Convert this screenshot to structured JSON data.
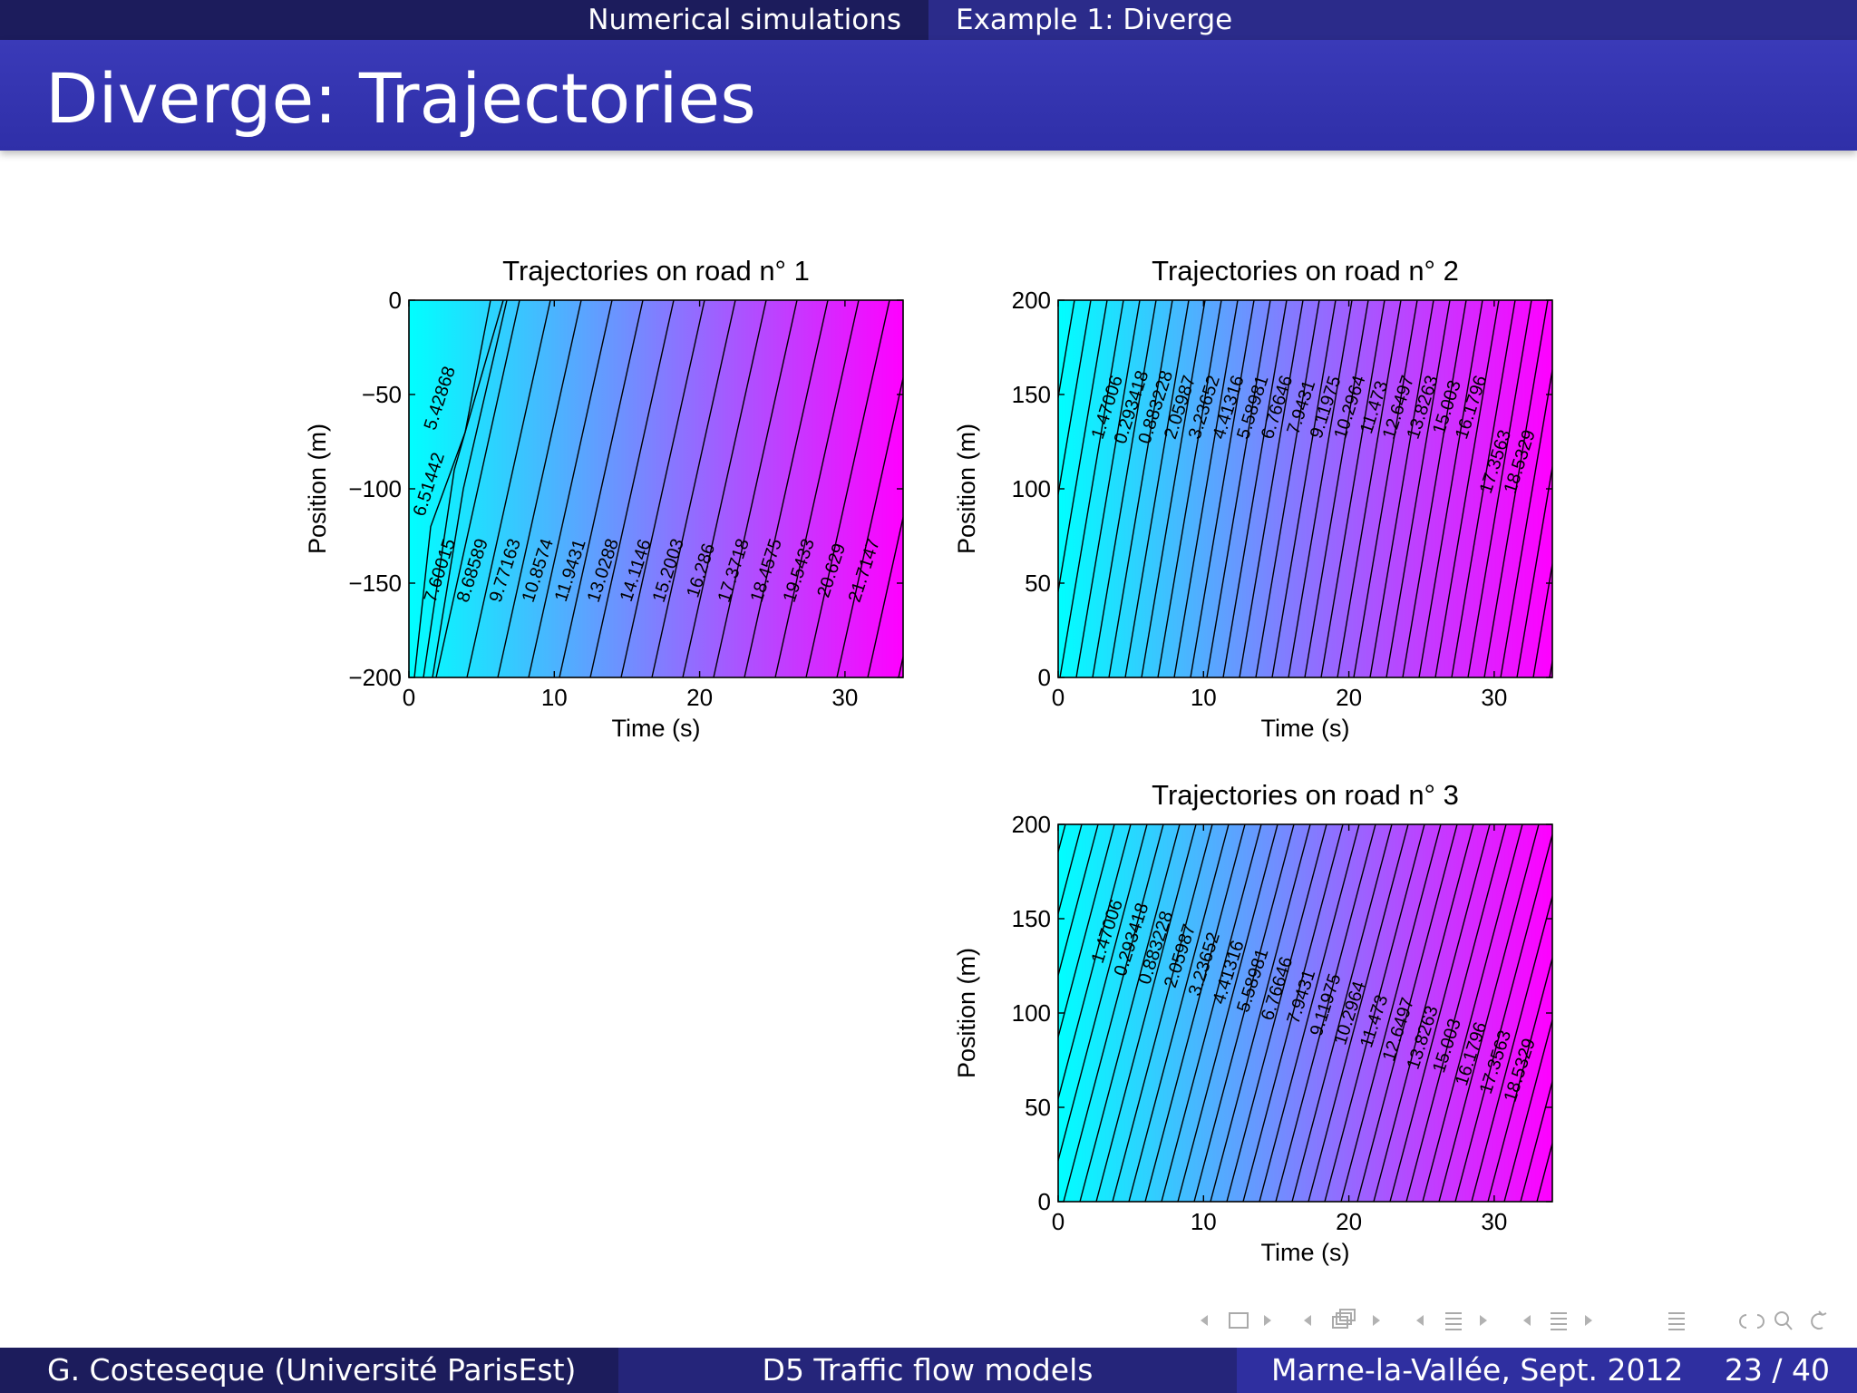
{
  "nav": {
    "section": "Numerical simulations",
    "subsection": "Example 1: Diverge"
  },
  "slide_title": "Diverge: Trajectories",
  "colors": {
    "low": "#00ffff",
    "high": "#ff00ff",
    "topbar": "#1c1c5c",
    "titlebar": "#3333b0"
  },
  "footer": {
    "author": "G. Costeseque (Université ParisEst)",
    "title": "D5 Traffic flow models",
    "place_date": "Marne-la-Vallée, Sept. 2012",
    "page": "23 / 40"
  },
  "nav_icons": [
    "frame-prev-icon",
    "frame-icon",
    "frame-next-icon",
    "subsection-prev-icon",
    "subsection-icon",
    "subsection-next-icon",
    "section-prev-icon",
    "section-icon",
    "section-next-icon",
    "appendix-icon",
    "search-icon",
    "zoom-icon",
    "back-icon"
  ],
  "chart_data": [
    {
      "type": "heatmap",
      "title": "Trajectories on road n° 1",
      "xlabel": "Time (s)",
      "ylabel": "Position (m)",
      "xlim": [
        0,
        34
      ],
      "ylim": [
        -200,
        0
      ],
      "xticks": [
        0,
        10,
        20,
        30
      ],
      "yticks": [
        0,
        -50,
        -100,
        -150,
        -200
      ],
      "ytick_labels": [
        "0",
        "−50",
        "−100",
        "−150",
        "−200"
      ],
      "contour_labels": [
        "5.42868",
        "6.51442",
        "7.60015",
        "8.68589",
        "9.77163",
        "10.8574",
        "11.9431",
        "13.0288",
        "14.1146",
        "15.2003",
        "16.286",
        "17.3718",
        "18.4575",
        "19.5433",
        "20.629",
        "21.7147"
      ]
    },
    {
      "type": "heatmap",
      "title": "Trajectories on road n° 2",
      "xlabel": "Time (s)",
      "ylabel": "Position (m)",
      "xlim": [
        0,
        34
      ],
      "ylim": [
        0,
        200
      ],
      "xticks": [
        0,
        10,
        20,
        30
      ],
      "yticks": [
        0,
        50,
        100,
        150,
        200
      ],
      "ytick_labels": [
        "0",
        "50",
        "100",
        "150",
        "200"
      ],
      "contour_labels": [
        "1.47006",
        "0.293418",
        "0.883228",
        "2.05987",
        "3.23652",
        "4.41316",
        "5.58981",
        "6.76646",
        "7.9431",
        "9.11975",
        "10.2964",
        "11.473",
        "12.6497",
        "13.8263",
        "15.003",
        "16.1796",
        "17.3563",
        "18.5329"
      ]
    },
    {
      "type": "heatmap",
      "title": "Trajectories on road n° 3",
      "xlabel": "Time (s)",
      "ylabel": "Position (m)",
      "xlim": [
        0,
        34
      ],
      "ylim": [
        0,
        200
      ],
      "xticks": [
        0,
        10,
        20,
        30
      ],
      "yticks": [
        0,
        50,
        100,
        150,
        200
      ],
      "ytick_labels": [
        "0",
        "50",
        "100",
        "150",
        "200"
      ],
      "contour_labels": [
        "1.47006",
        "0.293418",
        "0.883228",
        "2.05987",
        "3.23652",
        "4.41316",
        "5.58981",
        "6.76646",
        "7.9431",
        "9.11975",
        "10.2964",
        "11.473",
        "12.6497",
        "13.8263",
        "15.003",
        "16.1796",
        "17.3563",
        "18.5329"
      ]
    }
  ]
}
